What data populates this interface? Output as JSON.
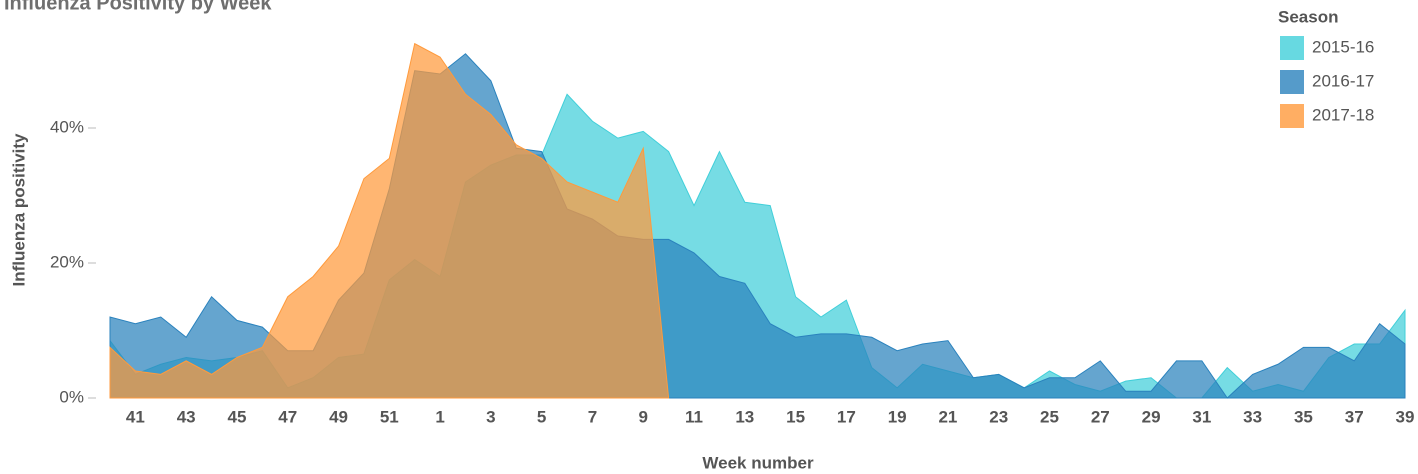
{
  "chart_data": {
    "type": "area",
    "title": "Influenza Positivity by Week",
    "x_label": "Week number",
    "y_label": "Influenza positivity",
    "legend_title": "Season",
    "legend_position": "top-right",
    "categories": [
      null,
      "41",
      null,
      "43",
      null,
      "45",
      null,
      "47",
      null,
      "49",
      null,
      "51",
      null,
      "1",
      null,
      "3",
      null,
      "5",
      null,
      "7",
      null,
      "9",
      null,
      "11",
      null,
      "13",
      null,
      "15",
      null,
      "17",
      null,
      "19",
      null,
      "21",
      null,
      "23",
      null,
      "25",
      null,
      "27",
      null,
      "29",
      null,
      "31",
      null,
      "33",
      null,
      "35",
      null,
      "37",
      null,
      "39"
    ],
    "ylim": [
      0,
      56
    ],
    "yticks": [
      {
        "value": 0,
        "label": "0%"
      },
      {
        "value": 20,
        "label": "20%"
      },
      {
        "value": 40,
        "label": "40%"
      }
    ],
    "series": [
      {
        "name": "2015-16",
        "color": "#41cfd9",
        "values": [
          8.5,
          3.5,
          5,
          6,
          5.5,
          6,
          7,
          1.5,
          3,
          6,
          6.5,
          17.5,
          20.5,
          18,
          32,
          34.5,
          36,
          36,
          45,
          41,
          38.5,
          39.5,
          36.5,
          28.5,
          36.5,
          29,
          28.5,
          15,
          12,
          14.5,
          4.5,
          1.5,
          5,
          4,
          3,
          3.5,
          1.5,
          4,
          2,
          1,
          2.5,
          3,
          0,
          0,
          4.5,
          1,
          2,
          1,
          6,
          8,
          8,
          13
        ]
      },
      {
        "name": "2016-17",
        "color": "#2a82bd",
        "values": [
          12,
          11,
          12,
          9,
          15,
          11.5,
          10.5,
          7,
          7,
          14.5,
          18.5,
          31,
          48.5,
          48,
          51,
          47,
          37,
          36.5,
          28,
          26.5,
          24,
          23.5,
          23.5,
          21.5,
          18,
          17,
          11,
          9,
          9.5,
          9.5,
          9,
          7,
          8,
          8.5,
          3,
          3.5,
          1.5,
          3,
          3,
          5.5,
          1,
          1,
          5.5,
          5.5,
          0,
          3.5,
          5,
          7.5,
          7.5,
          5.5,
          11,
          8
        ]
      },
      {
        "name": "2017-18",
        "color": "#ff9a3c",
        "values": [
          7.5,
          4,
          3.5,
          5.5,
          3.5,
          6,
          7.5,
          15,
          18,
          22.5,
          32.5,
          35.5,
          52.5,
          50.5,
          45,
          42,
          37.5,
          35.5,
          32,
          30.5,
          29,
          37,
          0,
          null,
          null,
          null,
          null,
          null,
          null,
          null,
          null,
          null,
          null,
          null,
          null,
          null,
          null,
          null,
          null,
          null,
          null,
          null,
          null,
          null,
          null,
          null,
          null,
          null,
          null,
          null,
          null,
          null
        ]
      }
    ]
  }
}
